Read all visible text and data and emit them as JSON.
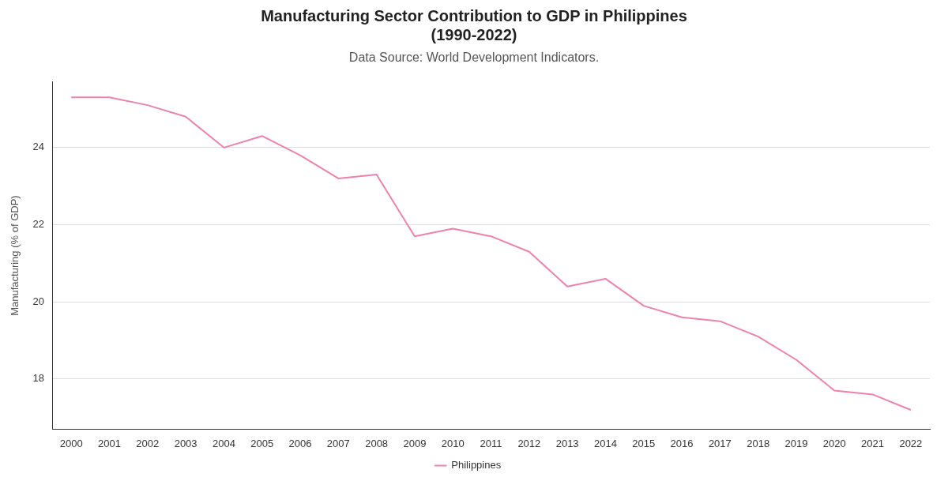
{
  "chart_data": {
    "type": "line",
    "title": "Manufacturing Sector Contribution to GDP in Philippines\n(1990-2022)",
    "subtitle": "Data Source: World Development Indicators.",
    "ylabel": "Manufacturing (% of GDP)",
    "categories": [
      "2000",
      "2001",
      "2002",
      "2003",
      "2004",
      "2005",
      "2006",
      "2007",
      "2008",
      "2009",
      "2010",
      "2011",
      "2012",
      "2013",
      "2014",
      "2015",
      "2016",
      "2017",
      "2018",
      "2019",
      "2020",
      "2021",
      "2022"
    ],
    "series": [
      {
        "name": "Philippines",
        "color": "#ee82ac",
        "values": [
          25.3,
          25.3,
          25.1,
          24.8,
          24.0,
          24.3,
          23.8,
          23.2,
          23.3,
          21.7,
          21.9,
          21.7,
          21.3,
          20.4,
          20.6,
          19.9,
          19.6,
          19.5,
          19.1,
          18.5,
          17.7,
          17.6,
          17.2
        ]
      }
    ],
    "ylim": [
      16.7,
      25.7
    ],
    "yticks": [
      18,
      20,
      22,
      24
    ],
    "grid": "y",
    "legend": "bottom",
    "marker": "none",
    "line_style": "solid"
  }
}
